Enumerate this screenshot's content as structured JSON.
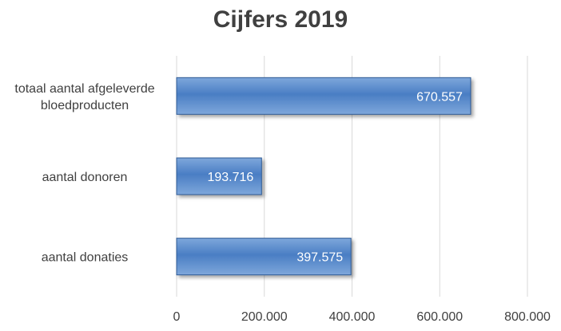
{
  "chart_data": {
    "type": "bar",
    "orientation": "horizontal",
    "title": "Cijfers 2019",
    "categories": [
      "aantal donaties",
      "aantal donoren",
      "totaal aantal afgeleverde bloedproducten"
    ],
    "category_lines": [
      [
        "aantal donaties"
      ],
      [
        "aantal donoren"
      ],
      [
        "totaal aantal afgeleverde",
        "bloedproducten"
      ]
    ],
    "values": [
      397575,
      193716,
      670557
    ],
    "data_labels": [
      "397.575",
      "193.716",
      "670.557"
    ],
    "xlim": [
      0,
      800000
    ],
    "x_ticks": [
      0,
      200000,
      400000,
      600000,
      800000
    ],
    "x_tick_labels": [
      "0",
      "200.000",
      "400.000",
      "600.000",
      "800.000"
    ],
    "xlabel": "",
    "ylabel": "",
    "grid": true,
    "legend": "none",
    "bar_color": "#4a7ec4",
    "bar_color_light": "#7ea7db",
    "bar_border_color": "#2f5a94"
  }
}
